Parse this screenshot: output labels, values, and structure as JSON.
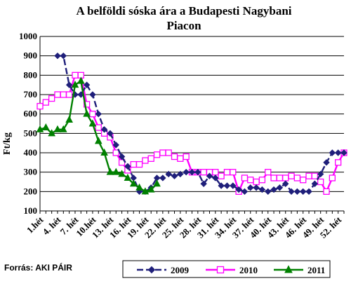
{
  "chart_data": {
    "type": "line",
    "title_line1": "A belföldi sóska ára a Budapesti Nagybani",
    "title_line2": "Piacon",
    "ylabel": "Ft/kg",
    "xlabel": "",
    "ylim": [
      100,
      1000
    ],
    "yticks": [
      "100",
      "200",
      "300",
      "400",
      "500",
      "600",
      "700",
      "800",
      "900",
      "1000"
    ],
    "xlim": [
      1,
      53
    ],
    "xtick_labels": [
      "1.hét",
      "4. hét",
      "7. hét",
      "10.hét",
      "13. hét",
      "16. hét",
      "19. hét",
      "22. hét",
      "25. hét",
      "28. hét",
      "31. hét",
      "34. hét",
      "37. hét",
      "40. hét",
      "43. hét",
      "46. hét",
      "49. hét",
      "52. hét"
    ],
    "xtick_positions": [
      1,
      4,
      7,
      10,
      13,
      16,
      19,
      22,
      25,
      28,
      31,
      34,
      37,
      40,
      43,
      46,
      49,
      52
    ],
    "grid": "horizontal",
    "legend_position": "bottom",
    "series": [
      {
        "name": "2009",
        "color": "#1f1f7a",
        "marker": "diamond",
        "dashed": true,
        "x": [
          4,
          5,
          6,
          7,
          8,
          9,
          10,
          11,
          12,
          13,
          14,
          15,
          16,
          17,
          18,
          19,
          20,
          21,
          22,
          23,
          24,
          25,
          26,
          27,
          28,
          29,
          30,
          31,
          32,
          33,
          34,
          35,
          36,
          37,
          38,
          39,
          40,
          41,
          42,
          43,
          44,
          45,
          46,
          47,
          48,
          49,
          50,
          51,
          52,
          53
        ],
        "y": [
          900,
          900,
          750,
          700,
          700,
          750,
          700,
          600,
          520,
          500,
          440,
          380,
          330,
          270,
          200,
          200,
          220,
          270,
          270,
          290,
          280,
          290,
          300,
          300,
          300,
          240,
          280,
          270,
          230,
          230,
          230,
          210,
          200,
          220,
          220,
          210,
          200,
          210,
          220,
          240,
          200,
          200,
          200,
          200,
          240,
          290,
          350,
          400,
          400,
          400
        ]
      },
      {
        "name": "2010",
        "color": "#ff00ff",
        "marker": "square",
        "dashed": false,
        "x": [
          1,
          2,
          3,
          4,
          5,
          6,
          7,
          8,
          9,
          10,
          11,
          12,
          13,
          14,
          15,
          16,
          17,
          18,
          19,
          20,
          21,
          22,
          23,
          24,
          25,
          26,
          27,
          28,
          29,
          30,
          31,
          32,
          33,
          34,
          35,
          36,
          37,
          38,
          39,
          40,
          41,
          42,
          43,
          44,
          45,
          46,
          47,
          48,
          49,
          50,
          51,
          52,
          53
        ],
        "y": [
          640,
          660,
          680,
          700,
          700,
          700,
          800,
          800,
          650,
          600,
          530,
          500,
          480,
          400,
          350,
          310,
          340,
          340,
          360,
          370,
          390,
          400,
          400,
          380,
          370,
          380,
          300,
          300,
          300,
          300,
          300,
          280,
          300,
          300,
          200,
          270,
          260,
          250,
          260,
          300,
          270,
          270,
          270,
          280,
          270,
          260,
          280,
          280,
          250,
          200,
          270,
          350,
          400
        ]
      },
      {
        "name": "2011",
        "color": "#008000",
        "marker": "triangle",
        "dashed": false,
        "x": [
          1,
          2,
          3,
          4,
          5,
          6,
          7,
          8,
          9,
          10,
          11,
          12,
          13,
          14,
          15,
          16,
          17,
          18,
          19,
          20,
          21
        ],
        "y": [
          520,
          530,
          500,
          520,
          520,
          570,
          750,
          770,
          600,
          550,
          460,
          400,
          300,
          300,
          290,
          270,
          240,
          220,
          200,
          210,
          240
        ]
      }
    ]
  },
  "footer": {
    "source": "Forrás: AKI PÁIR"
  }
}
